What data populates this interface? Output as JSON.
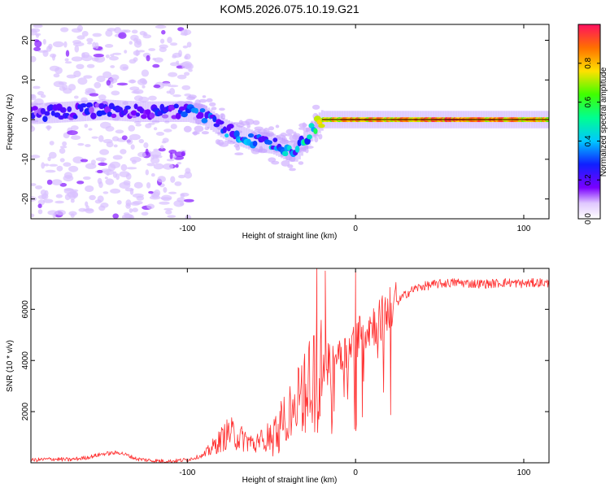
{
  "title": "KOM5.2026.075.10.19.G21",
  "chart_data": [
    {
      "type": "heatmap",
      "name": "spectrogram",
      "xlabel": "Height of straight line (km)",
      "ylabel": "Frequency (Hz)",
      "xlim": [
        -193,
        115
      ],
      "ylim": [
        -25,
        24
      ],
      "xticks": [
        -100,
        0,
        100
      ],
      "yticks": [
        -20,
        -10,
        0,
        10,
        20
      ],
      "colorbar": {
        "label": "Normalized spectral amplitude",
        "range": [
          0,
          1
        ],
        "ticks": [
          "0.0",
          "0.2",
          "0.4",
          "0.6",
          "0.8"
        ],
        "tick_values": [
          0.0,
          0.2,
          0.4,
          0.6,
          0.8
        ]
      },
      "ridge": {
        "x": [
          -190,
          -170,
          -150,
          -130,
          -110,
          -100,
          -90,
          -80,
          -70,
          -60,
          -50,
          -40,
          -35,
          -30,
          -25,
          -20,
          -10,
          0,
          20,
          40,
          60,
          80,
          100,
          115
        ],
        "frequency_hz": [
          1.5,
          2.0,
          2.5,
          2.0,
          2.0,
          2.0,
          1.0,
          -2.0,
          -4.0,
          -5.5,
          -6.0,
          -8.0,
          -8.0,
          -5.0,
          -2.0,
          0.0,
          0.0,
          0.0,
          0.0,
          0.0,
          0.0,
          0.0,
          0.0,
          0.0
        ],
        "amplitude": [
          0.25,
          0.25,
          0.25,
          0.25,
          0.28,
          0.32,
          0.35,
          0.38,
          0.4,
          0.38,
          0.4,
          0.42,
          0.45,
          0.5,
          0.6,
          0.75,
          0.82,
          0.9,
          0.85,
          0.88,
          0.92,
          0.88,
          0.85,
          0.8
        ]
      }
    },
    {
      "type": "line",
      "name": "snr",
      "xlabel": "Height of straight line (km)",
      "ylabel": "SNR (10 * v/v)",
      "xlim": [
        -193,
        115
      ],
      "ylim": [
        0,
        7600
      ],
      "xticks": [
        -100,
        0,
        100
      ],
      "yticks": [
        2000,
        4000,
        6000
      ],
      "color": "#ff3030",
      "series": [
        {
          "name": "SNR",
          "x": [
            -193,
            -180,
            -170,
            -160,
            -150,
            -140,
            -130,
            -120,
            -110,
            -100,
            -90,
            -85,
            -80,
            -75,
            -70,
            -65,
            -60,
            -55,
            -50,
            -45,
            -40,
            -35,
            -30,
            -25,
            -20,
            -15,
            -10,
            -5,
            0,
            5,
            10,
            15,
            20,
            25,
            30,
            35,
            40,
            50,
            60,
            70,
            80,
            90,
            100,
            110,
            115
          ],
          "y": [
            100,
            150,
            120,
            200,
            350,
            400,
            150,
            80,
            60,
            120,
            300,
            600,
            900,
            1200,
            1000,
            900,
            700,
            900,
            1100,
            1500,
            1900,
            2300,
            2900,
            3500,
            4000,
            3800,
            4400,
            4200,
            4900,
            5200,
            5400,
            5600,
            6000,
            6300,
            6600,
            6800,
            6900,
            7000,
            7050,
            7000,
            7000,
            7050,
            7000,
            7050,
            7000
          ]
        }
      ],
      "spikes": [
        {
          "x": -23,
          "y": 7600
        },
        {
          "x": -18,
          "y": 7500
        },
        {
          "x": 0,
          "y": 7500
        },
        {
          "x": 0.5,
          "y": 1500
        }
      ]
    }
  ]
}
